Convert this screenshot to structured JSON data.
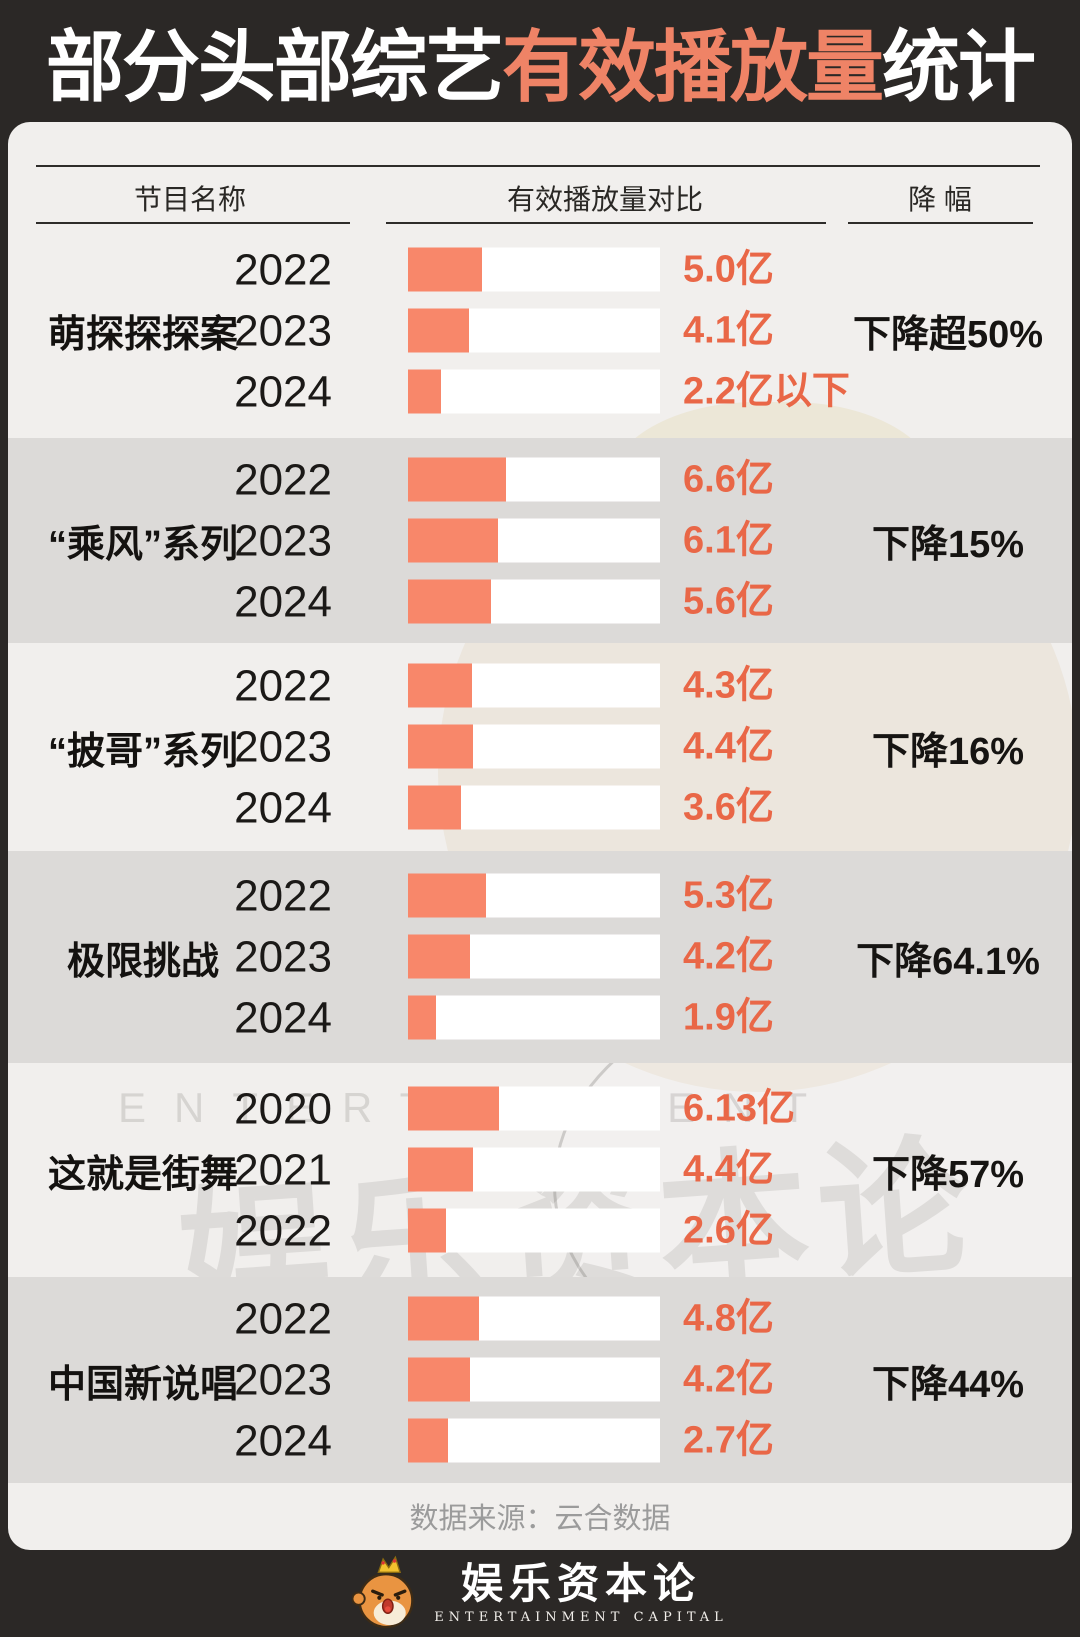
{
  "title": {
    "prefix": "部分头部综艺",
    "highlight": "有效播放量",
    "suffix": "统计"
  },
  "header": {
    "col_program": "节目名称",
    "col_comparison": "有效播放量对比",
    "col_decline": "降 幅"
  },
  "chart_data": {
    "type": "bar",
    "title": "部分头部综艺有效播放量统计",
    "unit": "亿",
    "orientation": "horizontal",
    "groups": [
      {
        "name": "萌探探探案",
        "decline": "下降超50%",
        "rows": [
          {
            "year": "2022",
            "value": 5.0,
            "label": "5.0亿"
          },
          {
            "year": "2023",
            "value": 4.1,
            "label": "4.1亿"
          },
          {
            "year": "2024",
            "value": 2.2,
            "label": "2.2亿以下"
          }
        ]
      },
      {
        "name": "“乘风”系列",
        "decline": "下降15%",
        "rows": [
          {
            "year": "2022",
            "value": 6.6,
            "label": "6.6亿"
          },
          {
            "year": "2023",
            "value": 6.1,
            "label": "6.1亿"
          },
          {
            "year": "2024",
            "value": 5.6,
            "label": "5.6亿"
          }
        ]
      },
      {
        "name": "“披哥”系列",
        "decline": "下降16%",
        "rows": [
          {
            "year": "2022",
            "value": 4.3,
            "label": "4.3亿"
          },
          {
            "year": "2023",
            "value": 4.4,
            "label": "4.4亿"
          },
          {
            "year": "2024",
            "value": 3.6,
            "label": "3.6亿"
          }
        ]
      },
      {
        "name": "极限挑战",
        "decline": "下降64.1%",
        "rows": [
          {
            "year": "2022",
            "value": 5.3,
            "label": "5.3亿"
          },
          {
            "year": "2023",
            "value": 4.2,
            "label": "4.2亿"
          },
          {
            "year": "2024",
            "value": 1.9,
            "label": "1.9亿"
          }
        ]
      },
      {
        "name": "这就是街舞",
        "decline": "下降57%",
        "rows": [
          {
            "year": "2020",
            "value": 6.13,
            "label": "6.13亿"
          },
          {
            "year": "2021",
            "value": 4.4,
            "label": "4.4亿"
          },
          {
            "year": "2022",
            "value": 2.6,
            "label": "2.6亿"
          }
        ]
      },
      {
        "name": "中国新说唱",
        "decline": "下降44%",
        "rows": [
          {
            "year": "2022",
            "value": 4.8,
            "label": "4.8亿"
          },
          {
            "year": "2023",
            "value": 4.2,
            "label": "4.2亿"
          },
          {
            "year": "2024",
            "value": 2.7,
            "label": "2.7亿"
          }
        ]
      }
    ]
  },
  "source": "数据来源：云合数据",
  "footer": {
    "brand": "娱乐资本论",
    "brand_sub": "ENTERTAINMENT CAPITAL"
  },
  "watermark": {
    "en": "ENTERTAINMENT",
    "cn": "娱乐资本论"
  },
  "colors": {
    "background_dark": "#2b2826",
    "card_light": "#f1efed",
    "band_gray": "#dcdad8",
    "bar_fill": "#f8876a",
    "value_text": "#e96747",
    "title_highlight": "#ef8366"
  }
}
